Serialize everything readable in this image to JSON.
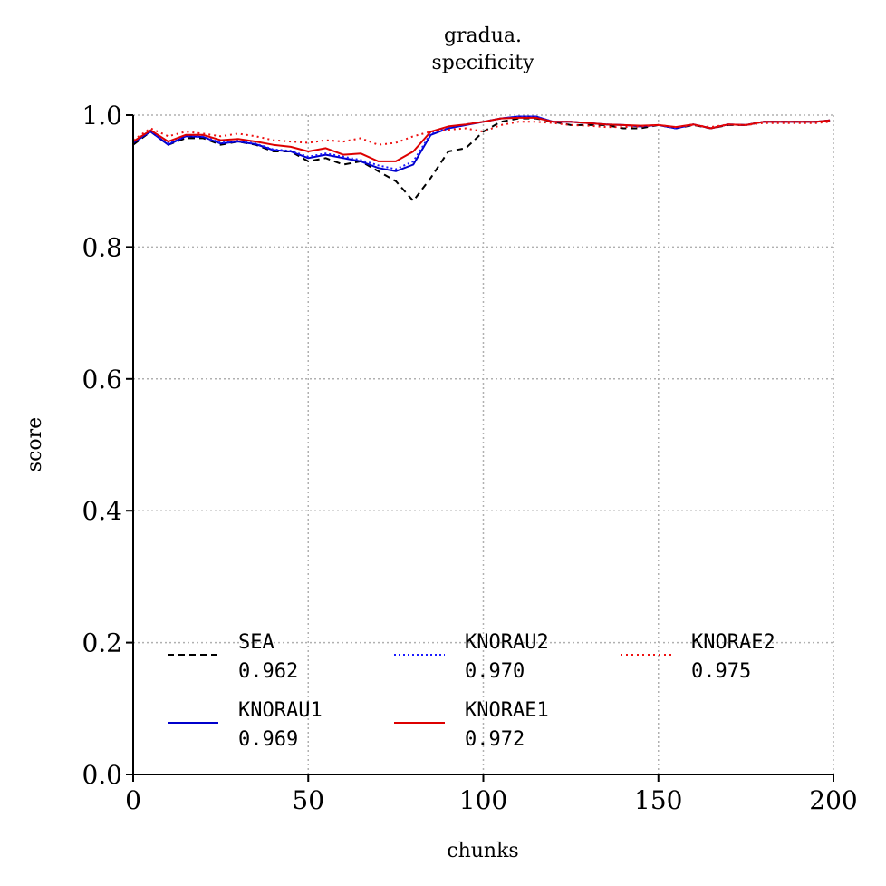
{
  "chart_data": {
    "type": "line",
    "title_lines": [
      "gradua.",
      "specificity"
    ],
    "xlabel": "chunks",
    "ylabel": "score",
    "xlim": [
      0,
      200
    ],
    "ylim": [
      0.0,
      1.0
    ],
    "xticks": [
      0,
      50,
      100,
      150,
      200
    ],
    "xtick_labels": [
      "0",
      "50",
      "100",
      "150",
      "200"
    ],
    "yticks": [
      0.0,
      0.2,
      0.4,
      0.6,
      0.8,
      1.0
    ],
    "ytick_labels": [
      "0.0",
      "0.2",
      "0.4",
      "0.6",
      "0.8",
      "1.0"
    ],
    "grid": true,
    "legend_position": "lower-left, 3 columns",
    "x": [
      0,
      5,
      10,
      15,
      20,
      25,
      30,
      35,
      40,
      45,
      50,
      55,
      60,
      65,
      70,
      75,
      80,
      85,
      90,
      95,
      100,
      105,
      110,
      115,
      120,
      125,
      130,
      135,
      140,
      145,
      150,
      155,
      160,
      165,
      170,
      175,
      180,
      185,
      190,
      195,
      199
    ],
    "series": [
      {
        "name": "SEA",
        "score_label": "0.962",
        "color": "#000000",
        "dash": "7,5",
        "width": 2,
        "values": [
          0.955,
          0.975,
          0.955,
          0.965,
          0.965,
          0.955,
          0.96,
          0.955,
          0.945,
          0.945,
          0.93,
          0.935,
          0.925,
          0.93,
          0.915,
          0.9,
          0.87,
          0.905,
          0.945,
          0.95,
          0.975,
          0.99,
          0.995,
          0.995,
          0.99,
          0.985,
          0.985,
          0.985,
          0.98,
          0.98,
          0.985,
          0.98,
          0.985,
          0.98,
          0.985,
          0.985,
          0.99,
          0.99,
          0.99,
          0.99,
          0.992
        ]
      },
      {
        "name": "KNORAU1",
        "score_label": "0.969",
        "color": "#0000cc",
        "dash": "",
        "width": 2,
        "values": [
          0.958,
          0.975,
          0.955,
          0.968,
          0.967,
          0.957,
          0.96,
          0.956,
          0.947,
          0.945,
          0.935,
          0.94,
          0.935,
          0.93,
          0.92,
          0.915,
          0.925,
          0.97,
          0.98,
          0.985,
          0.99,
          0.995,
          0.998,
          0.998,
          0.99,
          0.99,
          0.988,
          0.986,
          0.985,
          0.983,
          0.985,
          0.98,
          0.986,
          0.98,
          0.986,
          0.985,
          0.99,
          0.99,
          0.99,
          0.99,
          0.992
        ]
      },
      {
        "name": "KNORAU2",
        "score_label": "0.970",
        "color": "#1a1aff",
        "dash": "2,3",
        "width": 2,
        "values": [
          0.96,
          0.976,
          0.957,
          0.969,
          0.968,
          0.958,
          0.961,
          0.957,
          0.948,
          0.946,
          0.937,
          0.942,
          0.937,
          0.932,
          0.924,
          0.918,
          0.93,
          0.972,
          0.981,
          0.986,
          0.99,
          0.995,
          0.998,
          0.998,
          0.99,
          0.99,
          0.988,
          0.986,
          0.985,
          0.983,
          0.985,
          0.98,
          0.986,
          0.98,
          0.986,
          0.985,
          0.99,
          0.99,
          0.99,
          0.99,
          0.992
        ]
      },
      {
        "name": "KNORAE1",
        "score_label": "0.972",
        "color": "#dd0000",
        "dash": "",
        "width": 2,
        "values": [
          0.96,
          0.977,
          0.96,
          0.97,
          0.97,
          0.962,
          0.964,
          0.96,
          0.955,
          0.952,
          0.945,
          0.95,
          0.94,
          0.942,
          0.93,
          0.93,
          0.945,
          0.975,
          0.983,
          0.986,
          0.99,
          0.995,
          0.996,
          0.996,
          0.99,
          0.99,
          0.988,
          0.986,
          0.985,
          0.984,
          0.985,
          0.982,
          0.986,
          0.98,
          0.986,
          0.985,
          0.99,
          0.99,
          0.99,
          0.99,
          0.992
        ]
      },
      {
        "name": "KNORAE2",
        "score_label": "0.975",
        "color": "#ee1111",
        "dash": "2,4",
        "width": 2,
        "values": [
          0.962,
          0.98,
          0.968,
          0.975,
          0.972,
          0.968,
          0.972,
          0.968,
          0.962,
          0.96,
          0.958,
          0.962,
          0.96,
          0.965,
          0.955,
          0.958,
          0.968,
          0.975,
          0.978,
          0.98,
          0.975,
          0.985,
          0.99,
          0.99,
          0.988,
          0.985,
          0.984,
          0.982,
          0.982,
          0.983,
          0.985,
          0.982,
          0.985,
          0.982,
          0.986,
          0.985,
          0.988,
          0.988,
          0.988,
          0.988,
          0.99
        ]
      }
    ]
  }
}
